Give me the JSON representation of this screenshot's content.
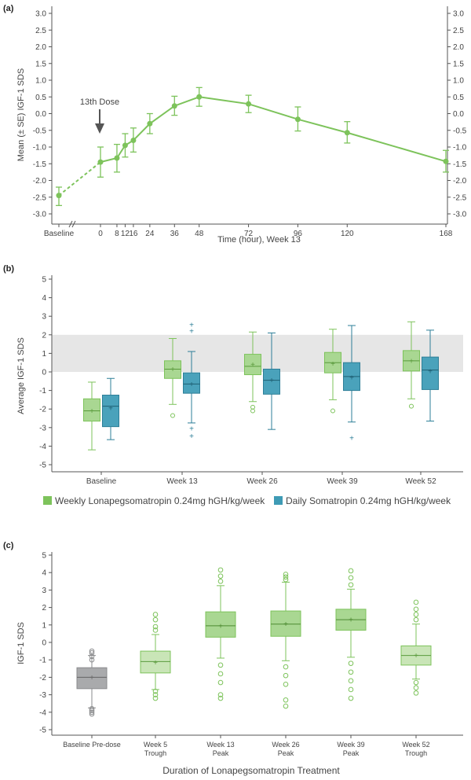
{
  "colors": {
    "green": "#7dc35b",
    "green_fill": "#a9d792",
    "green_light": "#c9e5b7",
    "teal": "#3e9bb5",
    "teal_fill": "#4aa2bb",
    "gray": "#a9aaac",
    "gray_band": "#e6e6e6"
  },
  "chart_data": [
    {
      "panel": "(a)",
      "type": "line",
      "ylabel": "Mean (± SE) IGF-1 SDS",
      "xlabel": "Time (hour), Week 13",
      "annotation": "13th Dose",
      "ylim": [
        -3.0,
        3.0
      ],
      "yticks": [
        "-3.0",
        "-2.5",
        "-2.0",
        "-1.5",
        "-1.0",
        "-0.5",
        "0.0",
        "0.5",
        "1.0",
        "1.5",
        "2.0",
        "2.5",
        "3.0"
      ],
      "xtick_labels": [
        "Baseline",
        "0",
        "8",
        "12",
        "16",
        "24",
        "36",
        "48",
        "72",
        "96",
        "120",
        "168"
      ],
      "x_hours": [
        0,
        8,
        12,
        16,
        24,
        36,
        48,
        72,
        96,
        120,
        168
      ],
      "baseline": {
        "mean": -2.45,
        "lo": -2.75,
        "hi": -2.2
      },
      "points": [
        {
          "x": 0,
          "mean": -1.45,
          "lo": -1.9,
          "hi": -1.0
        },
        {
          "x": 8,
          "mean": -1.33,
          "lo": -1.75,
          "hi": -0.92
        },
        {
          "x": 12,
          "mean": -0.95,
          "lo": -1.3,
          "hi": -0.6
        },
        {
          "x": 16,
          "mean": -0.8,
          "lo": -1.15,
          "hi": -0.43
        },
        {
          "x": 24,
          "mean": -0.3,
          "lo": -0.6,
          "hi": 0.0
        },
        {
          "x": 36,
          "mean": 0.23,
          "lo": -0.05,
          "hi": 0.52
        },
        {
          "x": 48,
          "mean": 0.5,
          "lo": 0.22,
          "hi": 0.78
        },
        {
          "x": 72,
          "mean": 0.29,
          "lo": 0.03,
          "hi": 0.55
        },
        {
          "x": 96,
          "mean": -0.17,
          "lo": -0.52,
          "hi": 0.2
        },
        {
          "x": 120,
          "mean": -0.57,
          "lo": -0.88,
          "hi": -0.24
        },
        {
          "x": 168,
          "mean": -1.43,
          "lo": -1.75,
          "hi": -1.1
        }
      ]
    },
    {
      "panel": "(b)",
      "type": "box",
      "ylabel": "Average IGF-1 SDS",
      "ylim": [
        -5,
        5
      ],
      "yticks": [
        "-5",
        "-4",
        "-3",
        "-2",
        "-1",
        "0",
        "1",
        "2",
        "3",
        "4",
        "5"
      ],
      "reference_band": [
        0,
        2
      ],
      "categories": [
        "Baseline",
        "Week 13",
        "Week 26",
        "Week 39",
        "Week 52"
      ],
      "series": [
        {
          "name": "Weekly Lonapegsomatropin 0.24mg hGH/kg/week",
          "boxes": [
            {
              "min": -4.2,
              "q1": -2.65,
              "median": -2.1,
              "mean": -2.1,
              "q3": -1.45,
              "max": -0.55,
              "outliers": []
            },
            {
              "min": -1.75,
              "q1": -0.35,
              "median": 0.15,
              "mean": 0.15,
              "q3": 0.6,
              "max": 1.8,
              "outliers": [
                -2.35
              ]
            },
            {
              "min": -1.6,
              "q1": -0.15,
              "median": 0.3,
              "mean": 0.4,
              "q3": 0.95,
              "max": 2.15,
              "outliers": [
                -1.9,
                -2.1
              ]
            },
            {
              "min": -1.5,
              "q1": -0.05,
              "median": 0.5,
              "mean": 0.45,
              "q3": 1.05,
              "max": 2.3,
              "outliers": [
                -2.1
              ]
            },
            {
              "min": -1.45,
              "q1": 0.05,
              "median": 0.6,
              "mean": 0.6,
              "q3": 1.15,
              "max": 2.7,
              "outliers": [
                -1.85
              ]
            }
          ]
        },
        {
          "name": "Daily Somatropin 0.24mg hGH/kg/week",
          "boxes": [
            {
              "min": -3.65,
              "q1": -2.95,
              "median": -1.85,
              "mean": -1.95,
              "q3": -1.25,
              "max": -0.35,
              "outliers": []
            },
            {
              "min": -2.75,
              "q1": -1.15,
              "median": -0.65,
              "mean": -0.65,
              "q3": -0.05,
              "max": 1.1,
              "outliers": [
                2.55,
                2.2,
                -3.05,
                -3.45
              ]
            },
            {
              "min": -3.1,
              "q1": -1.2,
              "median": -0.45,
              "mean": -0.45,
              "q3": 0.15,
              "max": 2.1,
              "outliers": []
            },
            {
              "min": -2.7,
              "q1": -1.0,
              "median": -0.25,
              "mean": -0.3,
              "q3": 0.5,
              "max": 2.5,
              "outliers": [
                -3.55
              ]
            },
            {
              "min": -2.65,
              "q1": -0.95,
              "median": 0.1,
              "mean": 0.05,
              "q3": 0.8,
              "max": 2.25,
              "outliers": []
            }
          ]
        }
      ]
    },
    {
      "panel": "(c)",
      "type": "box",
      "ylabel": "IGF-1 SDS",
      "xlabel": "Duration of Lonapegsomatropin Treatment",
      "ylim": [
        -5,
        5
      ],
      "yticks": [
        "-5",
        "-4",
        "-3",
        "-2",
        "-1",
        "0",
        "1",
        "2",
        "3",
        "4",
        "5"
      ],
      "categories": [
        [
          "Baseline Pre-dose"
        ],
        [
          "Week 5",
          "Trough"
        ],
        [
          "Week 13",
          "Peak"
        ],
        [
          "Week 26",
          "Peak"
        ],
        [
          "Week 39",
          "Peak"
        ],
        [
          "Week 52",
          "Trough"
        ]
      ],
      "boxes": [
        {
          "min": -3.75,
          "q1": -2.65,
          "median": -2.0,
          "mean": -2.0,
          "q3": -1.45,
          "max": -0.75,
          "style": "gray",
          "outliers": [
            -0.5,
            -0.6,
            -0.8,
            -1.0,
            -3.8,
            -3.9,
            -4.0,
            -4.1
          ]
        },
        {
          "min": -2.7,
          "q1": -1.75,
          "median": -1.1,
          "mean": -1.15,
          "q3": -0.5,
          "max": 0.45,
          "style": "light",
          "outliers": [
            1.6,
            1.3,
            0.9,
            0.7,
            -2.8,
            -3.0,
            -3.2
          ]
        },
        {
          "min": -0.9,
          "q1": 0.3,
          "median": 0.95,
          "mean": 0.95,
          "q3": 1.75,
          "max": 3.25,
          "style": "green",
          "outliers": [
            4.15,
            3.8,
            3.5,
            -1.3,
            -1.8,
            -2.3,
            -3.0,
            -3.2
          ]
        },
        {
          "min": -1.05,
          "q1": 0.35,
          "median": 1.05,
          "mean": 1.05,
          "q3": 1.8,
          "max": 3.45,
          "style": "green",
          "outliers": [
            3.9,
            3.75,
            3.6,
            -1.4,
            -1.9,
            -2.4,
            -3.3,
            -3.65
          ]
        },
        {
          "min": -0.85,
          "q1": 0.7,
          "median": 1.3,
          "mean": 1.3,
          "q3": 1.9,
          "max": 3.05,
          "style": "green",
          "outliers": [
            4.1,
            3.7,
            3.3,
            -1.2,
            -1.7,
            -2.2,
            -2.7,
            -3.2
          ]
        },
        {
          "min": -2.1,
          "q1": -1.3,
          "median": -0.75,
          "mean": -0.75,
          "q3": -0.2,
          "max": 1.05,
          "style": "light",
          "outliers": [
            2.3,
            1.9,
            1.6,
            1.3,
            -2.3,
            -2.6,
            -2.9
          ]
        }
      ]
    }
  ]
}
